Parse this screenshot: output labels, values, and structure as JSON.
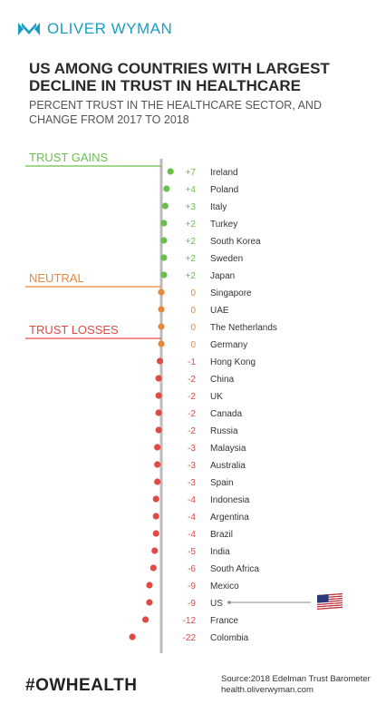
{
  "brand": {
    "name": "OLIVER WYMAN",
    "color": "#1a9fc4"
  },
  "title": "US AMONG COUNTRIES WITH LARGEST DECLINE IN TRUST IN HEALTHCARE",
  "subtitle": "PERCENT TRUST IN THE HEALTHCARE SECTOR, AND CHANGE FROM 2017 TO 2018",
  "footer": {
    "hashtag": "#OWHEALTH",
    "source": "Source:2018 Edelman Trust Barometer",
    "website": "health.oliverwyman.com"
  },
  "colors": {
    "gain": "#6abf4b",
    "neutral": "#e8883a",
    "loss": "#e04a45",
    "axis": "#bbbbbb"
  },
  "chart_data": {
    "type": "scatter",
    "groups": [
      {
        "name": "TRUST GAINS",
        "color": "#6abf4b"
      },
      {
        "name": "NEUTRAL",
        "color": "#e8883a"
      },
      {
        "name": "TRUST LOSSES",
        "color": "#e04a45"
      }
    ],
    "points": [
      {
        "country": "Ireland",
        "value": 7,
        "label": "+7",
        "group": 0
      },
      {
        "country": "Poland",
        "value": 4,
        "label": "+4",
        "group": 0
      },
      {
        "country": "Italy",
        "value": 3,
        "label": "+3",
        "group": 0
      },
      {
        "country": "Turkey",
        "value": 2,
        "label": "+2",
        "group": 0
      },
      {
        "country": "South Korea",
        "value": 2,
        "label": "+2",
        "group": 0
      },
      {
        "country": "Sweden",
        "value": 2,
        "label": "+2",
        "group": 0
      },
      {
        "country": "Japan",
        "value": 2,
        "label": "+2",
        "group": 0
      },
      {
        "country": "Singapore",
        "value": 0,
        "label": "0",
        "group": 1
      },
      {
        "country": "UAE",
        "value": 0,
        "label": "0",
        "group": 1
      },
      {
        "country": "The Netherlands",
        "value": 0,
        "label": "0",
        "group": 1
      },
      {
        "country": "Germany",
        "value": 0,
        "label": "0",
        "group": 1
      },
      {
        "country": "Hong Kong",
        "value": -1,
        "label": "-1",
        "group": 2
      },
      {
        "country": "China",
        "value": -2,
        "label": "-2",
        "group": 2
      },
      {
        "country": "UK",
        "value": -2,
        "label": "-2",
        "group": 2
      },
      {
        "country": "Canada",
        "value": -2,
        "label": "-2",
        "group": 2
      },
      {
        "country": "Russia",
        "value": -2,
        "label": "-2",
        "group": 2
      },
      {
        "country": "Malaysia",
        "value": -3,
        "label": "-3",
        "group": 2
      },
      {
        "country": "Australia",
        "value": -3,
        "label": "-3",
        "group": 2
      },
      {
        "country": "Spain",
        "value": -3,
        "label": "-3",
        "group": 2
      },
      {
        "country": "Indonesia",
        "value": -4,
        "label": "-4",
        "group": 2
      },
      {
        "country": "Argentina",
        "value": -4,
        "label": "-4",
        "group": 2
      },
      {
        "country": "Brazil",
        "value": -4,
        "label": "-4",
        "group": 2
      },
      {
        "country": "India",
        "value": -5,
        "label": "-5",
        "group": 2
      },
      {
        "country": "South Africa",
        "value": -6,
        "label": "-6",
        "group": 2
      },
      {
        "country": "Mexico",
        "value": -9,
        "label": "-9",
        "group": 2
      },
      {
        "country": "US",
        "value": -9,
        "label": "-9",
        "group": 2,
        "highlight": true
      },
      {
        "country": "France",
        "value": -12,
        "label": "-12",
        "group": 2
      },
      {
        "country": "Colombia",
        "value": -22,
        "label": "-22",
        "group": 2
      }
    ],
    "highlight_icon": "us-flag-icon"
  }
}
